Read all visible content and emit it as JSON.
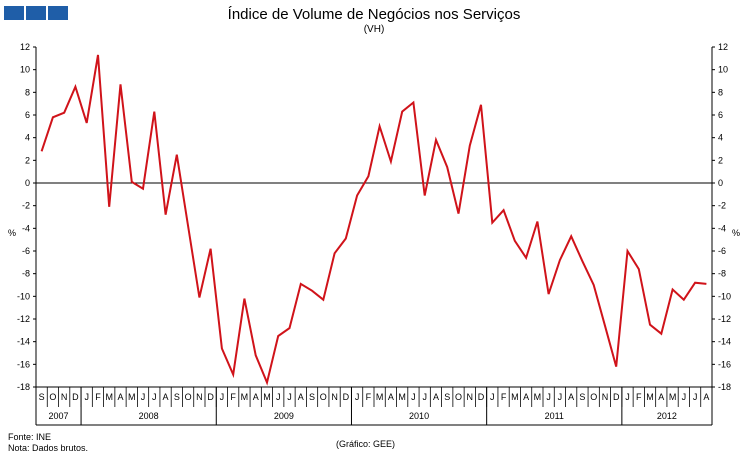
{
  "chart_data": {
    "type": "line",
    "title": "Índice de Volume de Negócios nos Serviços",
    "subtitle": "(VH)",
    "ylabel_left": "%",
    "ylabel_right": "%",
    "ylim": [
      -18,
      12
    ],
    "yticks": [
      12,
      10,
      8,
      6,
      4,
      2,
      0,
      -2,
      -4,
      -6,
      -8,
      -10,
      -12,
      -14,
      -16,
      -18
    ],
    "month_labels": [
      "S",
      "O",
      "N",
      "D",
      "J",
      "F",
      "M",
      "A",
      "M",
      "J",
      "J",
      "A",
      "S",
      "O",
      "N",
      "D",
      "J",
      "F",
      "M",
      "A",
      "M",
      "J",
      "J",
      "A",
      "S",
      "O",
      "N",
      "D",
      "J",
      "F",
      "M",
      "A",
      "M",
      "J",
      "J",
      "A",
      "S",
      "O",
      "N",
      "D",
      "J",
      "F",
      "M",
      "A",
      "M",
      "J",
      "J",
      "A",
      "S",
      "O",
      "N",
      "D",
      "J",
      "F",
      "M",
      "A",
      "M",
      "J",
      "J",
      "A"
    ],
    "years": [
      {
        "label": "2007",
        "start": 0,
        "count": 4
      },
      {
        "label": "2008",
        "start": 4,
        "count": 12
      },
      {
        "label": "2009",
        "start": 16,
        "count": 12
      },
      {
        "label": "2010",
        "start": 28,
        "count": 12
      },
      {
        "label": "2011",
        "start": 40,
        "count": 12
      },
      {
        "label": "2012",
        "start": 52,
        "count": 8
      }
    ],
    "series": [
      {
        "name": "VH",
        "color": "#d0131a",
        "values": [
          2.8,
          5.8,
          6.2,
          8.5,
          5.3,
          11.3,
          -2.1,
          8.7,
          0.1,
          -0.5,
          6.3,
          -2.8,
          2.5,
          -3.8,
          -10.1,
          -5.8,
          -14.6,
          -16.9,
          -10.2,
          -15.2,
          -17.6,
          -13.5,
          -12.8,
          -8.9,
          -9.5,
          -10.3,
          -6.2,
          -4.9,
          -1.1,
          0.6,
          5.0,
          1.9,
          6.3,
          7.1,
          -1.1,
          3.8,
          1.4,
          -2.7,
          3.3,
          6.9,
          -3.5,
          -2.4,
          -5.1,
          -6.6,
          -3.4,
          -9.8,
          -6.8,
          -4.7,
          -6.9,
          -9.0,
          -12.6,
          -16.2,
          -6.0,
          -7.6,
          -12.5,
          -13.3,
          -9.4,
          -10.3,
          -8.8,
          -8.9
        ]
      }
    ]
  },
  "footnotes": {
    "source": "Fonte: INE",
    "note": "Nota: Dados  brutos.",
    "credit": "(Gráfico: GEE)"
  },
  "colors": {
    "logo": "#1f5ea8",
    "line": "#d0131a"
  }
}
